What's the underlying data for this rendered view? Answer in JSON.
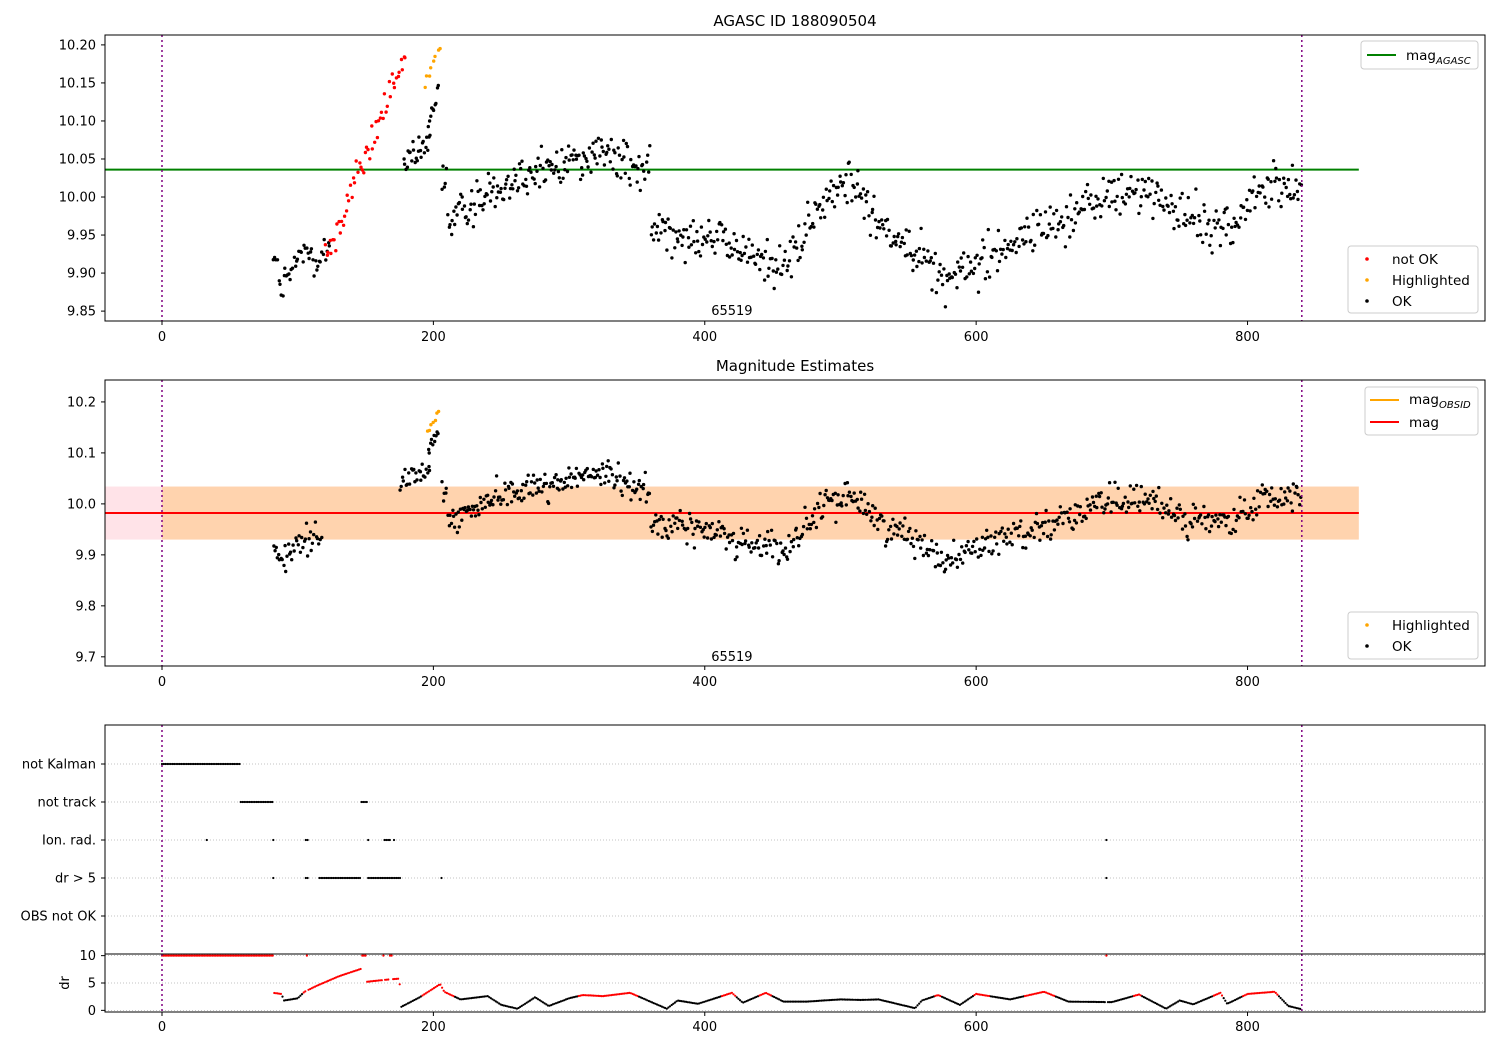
{
  "colors": {
    "ok": "#000000",
    "not_ok": "#ff0000",
    "highlighted": "#ffa500",
    "mag_agasc": "#008000",
    "mag": "#ff0000",
    "mag_obsid": "#ffa500",
    "vline": "#800080",
    "band_obsid": "#ffa500",
    "band_mag": "#ffc0cb"
  },
  "chart_data": [
    {
      "type": "scatter",
      "title": "AGASC ID 188090504",
      "xlim": [
        -42,
        975
      ],
      "ylim": [
        9.837,
        10.213
      ],
      "xticks": [
        0,
        200,
        400,
        600,
        800
      ],
      "yticks": [
        9.85,
        9.9,
        9.95,
        10.0,
        10.05,
        10.1,
        10.15,
        10.2
      ],
      "ytick_labels": [
        "9.85",
        "9.90",
        "9.95",
        "10.00",
        "10.05",
        "10.10",
        "10.15",
        "10.20"
      ],
      "obs_lines": [
        0,
        840
      ],
      "annotation": {
        "text": "65519",
        "x": 420,
        "y": 9.85
      },
      "mag_agasc": {
        "value": 10.036,
        "xmin": -42,
        "xmax": 882
      },
      "legend_upper": [
        "mag_AGASC"
      ],
      "legend_upper_main": "mag",
      "legend_upper_sub": "AGASC",
      "legend_lower": [
        "not OK",
        "Highlighted",
        "OK"
      ],
      "series": [
        {
          "name": "OK",
          "x0": 82,
          "x1": 124,
          "n": 45,
          "y0": 9.915,
          "y1": 9.93,
          "noise": 0.03,
          "dip": -0.035
        },
        {
          "name": "not OK",
          "x0": 120,
          "x1": 180,
          "n": 55,
          "y0": 9.915,
          "y1": 10.19,
          "noise": 0.025
        },
        {
          "name": "OK",
          "x0": 178,
          "x1": 198,
          "n": 25,
          "y0": 10.04,
          "y1": 10.07,
          "noise": 0.02
        },
        {
          "name": "OK",
          "x0": 196,
          "x1": 204,
          "n": 10,
          "y0": 10.1,
          "y1": 10.14,
          "noise": 0.015
        },
        {
          "name": "Highlighted",
          "x0": 193,
          "x1": 206,
          "n": 8,
          "y0": 10.14,
          "y1": 10.205,
          "noise": 0.012
        },
        {
          "name": "OK",
          "x0": 206,
          "x1": 360,
          "n": 180,
          "y0": 9.965,
          "y1": 10.03,
          "noise": 0.028,
          "bumps": [
            [
              210,
              9.965
            ],
            [
              250,
              10.02
            ],
            [
              280,
              10.035
            ],
            [
              320,
              10.06
            ],
            [
              360,
              10.03
            ]
          ]
        },
        {
          "name": "OK",
          "x0": 360,
          "x1": 560,
          "n": 220,
          "y0": 9.96,
          "y1": 9.96,
          "noise": 0.03,
          "bumps": [
            [
              360,
              9.96
            ],
            [
              400,
              9.95
            ],
            [
              440,
              9.92
            ],
            [
              460,
              9.91
            ],
            [
              490,
              10.0
            ],
            [
              510,
              10.02
            ],
            [
              530,
              9.96
            ],
            [
              560,
              9.93
            ]
          ]
        },
        {
          "name": "OK",
          "x0": 560,
          "x1": 840,
          "n": 300,
          "y0": 9.9,
          "y1": 10.02,
          "noise": 0.03,
          "bumps": [
            [
              560,
              9.92
            ],
            [
              580,
              9.89
            ],
            [
              620,
              9.935
            ],
            [
              650,
              9.96
            ],
            [
              690,
              9.995
            ],
            [
              720,
              10.01
            ],
            [
              760,
              9.97
            ],
            [
              790,
              9.96
            ],
            [
              810,
              10.01
            ],
            [
              840,
              10.02
            ]
          ]
        }
      ]
    },
    {
      "type": "scatter",
      "title": "Magnitude Estimates",
      "xlim": [
        -42,
        975
      ],
      "ylim": [
        9.682,
        10.243
      ],
      "xticks": [
        0,
        200,
        400,
        600,
        800
      ],
      "yticks": [
        9.7,
        9.8,
        9.9,
        10.0,
        10.1,
        10.2
      ],
      "ytick_labels": [
        "9.7",
        "9.8",
        "9.9",
        "10.0",
        "10.1",
        "10.2"
      ],
      "obs_lines": [
        0,
        840
      ],
      "annotation": {
        "text": "65519",
        "x": 420,
        "y": 9.7
      },
      "mag": {
        "value": 9.982,
        "sigma": 0.052,
        "xmin": -42,
        "xmax": 882
      },
      "mag_obsid": {
        "value": 9.982,
        "sigma": 0.052,
        "xmin": 0,
        "xmax": 882
      },
      "legend_upper": [
        "mag_OBSID",
        "mag"
      ],
      "legend_upper_main": "mag",
      "legend_upper_sub": "OBSID",
      "legend_lower": [
        "Highlighted",
        "OK"
      ],
      "series": [
        {
          "name": "OK",
          "x0": 82,
          "x1": 118,
          "n": 40,
          "y0": 9.92,
          "y1": 9.93,
          "noise": 0.03,
          "dip": -0.035
        },
        {
          "name": "OK",
          "x0": 175,
          "x1": 198,
          "n": 25,
          "y0": 10.04,
          "y1": 10.07,
          "noise": 0.02
        },
        {
          "name": "OK",
          "x0": 196,
          "x1": 204,
          "n": 10,
          "y0": 10.1,
          "y1": 10.14,
          "noise": 0.015
        },
        {
          "name": "Highlighted",
          "x0": 195,
          "x1": 205,
          "n": 7,
          "y0": 10.14,
          "y1": 10.18,
          "noise": 0.012
        },
        {
          "name": "OK",
          "x0": 206,
          "x1": 360,
          "n": 180,
          "y0": 9.965,
          "y1": 10.03,
          "noise": 0.028,
          "bumps": [
            [
              210,
              9.965
            ],
            [
              250,
              10.02
            ],
            [
              280,
              10.035
            ],
            [
              320,
              10.06
            ],
            [
              360,
              10.03
            ]
          ]
        },
        {
          "name": "OK",
          "x0": 360,
          "x1": 560,
          "n": 220,
          "y0": 9.96,
          "y1": 9.96,
          "noise": 0.03,
          "bumps": [
            [
              360,
              9.96
            ],
            [
              400,
              9.95
            ],
            [
              440,
              9.92
            ],
            [
              460,
              9.91
            ],
            [
              490,
              10.0
            ],
            [
              510,
              10.02
            ],
            [
              530,
              9.96
            ],
            [
              560,
              9.93
            ]
          ]
        },
        {
          "name": "OK",
          "x0": 560,
          "x1": 840,
          "n": 300,
          "y0": 9.9,
          "y1": 10.02,
          "noise": 0.03,
          "bumps": [
            [
              560,
              9.92
            ],
            [
              580,
              9.89
            ],
            [
              620,
              9.935
            ],
            [
              650,
              9.96
            ],
            [
              690,
              9.995
            ],
            [
              720,
              10.01
            ],
            [
              760,
              9.97
            ],
            [
              790,
              9.96
            ],
            [
              810,
              10.01
            ],
            [
              840,
              10.02
            ]
          ]
        }
      ]
    },
    {
      "type": "scatter",
      "title": "",
      "xlim": [
        -42,
        975
      ],
      "categories": [
        "not Kalman",
        "not track",
        "Ion. rad.",
        "dr > 5",
        "OBS not OK"
      ],
      "flag_ranges": [
        {
          "category": "not Kalman",
          "segments": [
            [
              0,
              58
            ]
          ]
        },
        {
          "category": "not track",
          "segments": [
            [
              58,
              82
            ],
            [
              147,
              151
            ]
          ]
        },
        {
          "category": "Ion. rad.",
          "segments": [
            [
              33,
              33
            ],
            [
              82,
              82
            ],
            [
              106,
              108
            ],
            [
              152,
              152
            ],
            [
              164,
              168
            ],
            [
              171,
              171
            ],
            [
              696,
              696
            ]
          ]
        },
        {
          "category": "dr > 5",
          "segments": [
            [
              82,
              82
            ],
            [
              106,
              108
            ],
            [
              116,
              146
            ],
            [
              152,
              176
            ],
            [
              206,
              206
            ],
            [
              696,
              696
            ]
          ]
        },
        {
          "category": "OBS not OK",
          "segments": []
        }
      ]
    },
    {
      "type": "scatter",
      "title": "",
      "xlim": [
        -42,
        975
      ],
      "ylim": [
        -0.3,
        10.3
      ],
      "ylabel": "dr",
      "yticks": [
        0,
        5,
        10
      ],
      "ytick_labels": [
        "0",
        "5",
        "10"
      ],
      "xticks": [
        0,
        200,
        400,
        600,
        800
      ],
      "clip_value": 10,
      "red_segments": [
        [
          0,
          82
        ],
        [
          106,
          108
        ],
        [
          147,
          151
        ],
        [
          162,
          164
        ],
        [
          168,
          170
        ],
        [
          696,
          696
        ]
      ],
      "curve": [
        [
          82,
          3.2
        ],
        [
          88,
          3
        ],
        [
          90,
          1.8
        ],
        [
          100,
          2.2
        ],
        [
          105,
          3.4
        ],
        [
          115,
          4.6
        ],
        [
          130,
          6.2
        ],
        [
          148,
          7.7
        ],
        [
          150,
          5.2
        ],
        [
          165,
          5.6
        ],
        [
          175,
          5.8
        ],
        [
          176,
          0.6
        ],
        [
          190,
          2.4
        ],
        [
          205,
          4.8
        ],
        [
          208,
          3.4
        ],
        [
          220,
          2.0
        ],
        [
          240,
          2.6
        ],
        [
          250,
          1.0
        ],
        [
          262,
          0.3
        ],
        [
          275,
          2.4
        ],
        [
          285,
          0.8
        ],
        [
          300,
          2.2
        ],
        [
          310,
          2.8
        ],
        [
          325,
          2.6
        ],
        [
          345,
          3.2
        ],
        [
          372,
          0.3
        ],
        [
          380,
          1.8
        ],
        [
          395,
          1.2
        ],
        [
          420,
          3.2
        ],
        [
          428,
          1.4
        ],
        [
          445,
          3.2
        ],
        [
          458,
          1.6
        ],
        [
          475,
          1.6
        ],
        [
          500,
          2.0
        ],
        [
          515,
          1.9
        ],
        [
          528,
          2.0
        ],
        [
          555,
          0.4
        ],
        [
          560,
          1.8
        ],
        [
          572,
          2.8
        ],
        [
          588,
          1.0
        ],
        [
          600,
          3.0
        ],
        [
          625,
          2.0
        ],
        [
          650,
          3.4
        ],
        [
          668,
          1.6
        ],
        [
          700,
          1.5
        ],
        [
          720,
          2.9
        ],
        [
          740,
          0.3
        ],
        [
          750,
          1.8
        ],
        [
          760,
          1.1
        ],
        [
          780,
          3.2
        ],
        [
          785,
          1.2
        ],
        [
          800,
          3.0
        ],
        [
          820,
          3.4
        ],
        [
          830,
          0.8
        ],
        [
          840,
          0.2
        ]
      ]
    }
  ]
}
